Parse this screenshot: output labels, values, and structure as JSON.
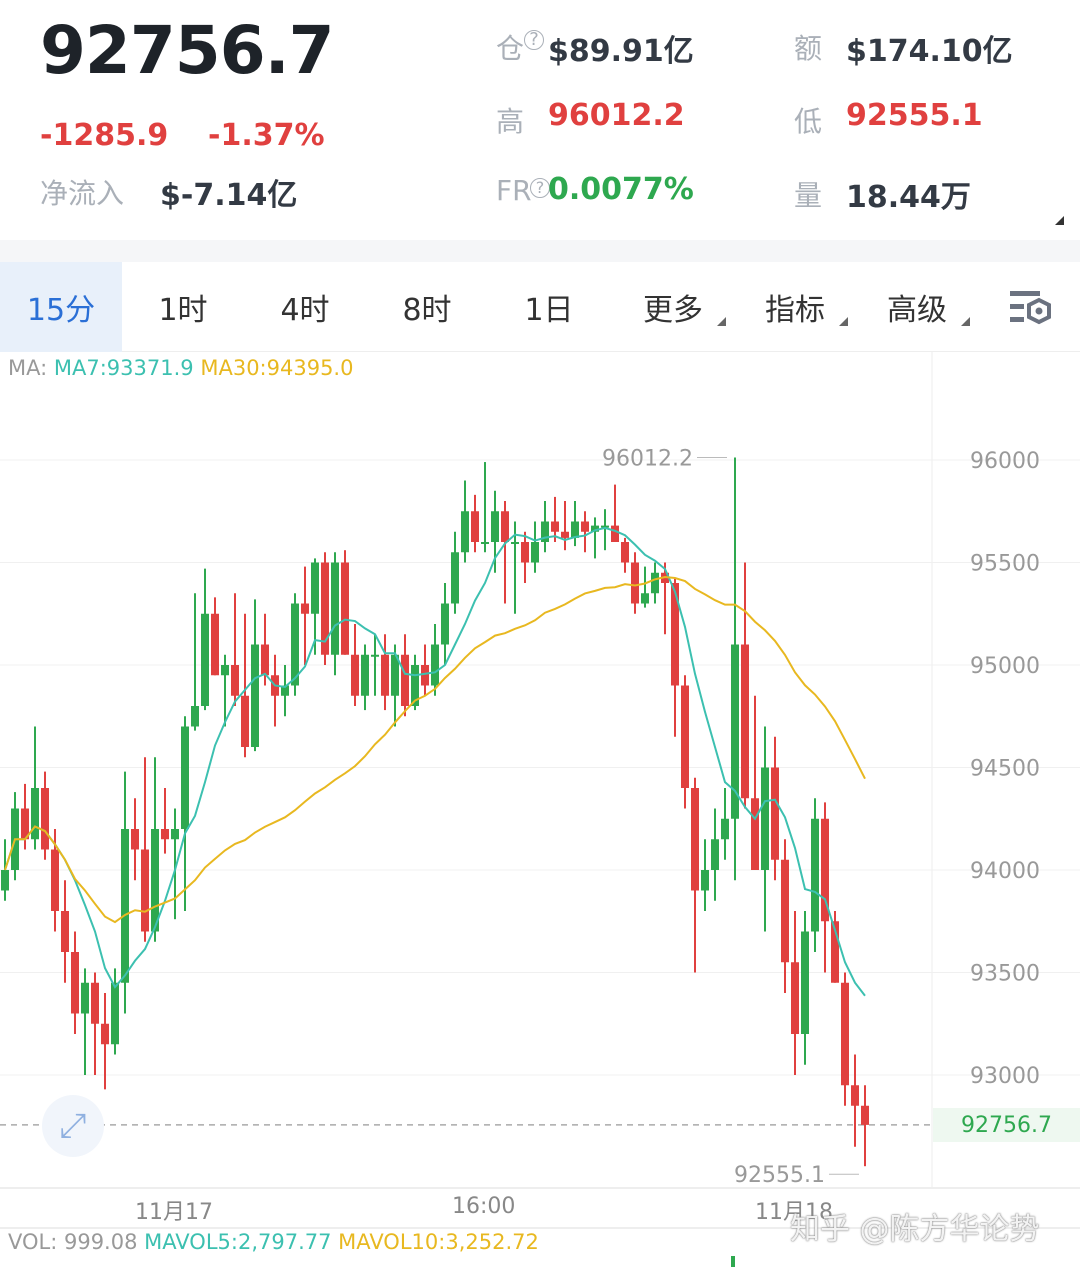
{
  "header": {
    "last_price": "92756.7",
    "change": "-1285.9",
    "change_pct": "-1.37%",
    "net_inflow_label": "净流入",
    "net_inflow": "$-7.14亿",
    "oi_label": "仓",
    "oi": "$89.91亿",
    "turnover_label": "额",
    "turnover": "$174.10亿",
    "high_label": "高",
    "high": "96012.2",
    "low_label": "低",
    "low": "92555.1",
    "fr_label": "FR",
    "fr": "0.0077%",
    "volume_label": "量",
    "volume": "18.44万"
  },
  "tabs": [
    {
      "label": "15分",
      "active": true
    },
    {
      "label": "1时"
    },
    {
      "label": "4时"
    },
    {
      "label": "8时"
    },
    {
      "label": "1日"
    },
    {
      "label": "更多"
    },
    {
      "label": "指标"
    },
    {
      "label": "高级"
    }
  ],
  "indicators": {
    "ma_prefix": "MA:",
    "ma7": "MA7:93371.9",
    "ma30": "MA30:94395.0",
    "vol": "VOL: 999.08",
    "mavol5": "MAVOL5:2,797.77",
    "mavol10": "MAVOL10:3,252.72"
  },
  "colors": {
    "up": "#2ea84f",
    "down": "#e0403f",
    "ma7": "#3cc0b0",
    "ma30": "#e8b820",
    "accent": "#2a6fd6"
  },
  "watermark": "知乎 @陈方华论势",
  "chart_data": {
    "type": "candlestick",
    "interval": "15分",
    "y_ticks": [
      96000,
      95500,
      95000,
      94500,
      94000,
      93500,
      93000
    ],
    "ylim": [
      92500,
      96500
    ],
    "x_labels": [
      "11月17",
      "16:00",
      "11月18"
    ],
    "grid": true,
    "high_annotation": "96012.2",
    "low_annotation": "92555.1",
    "last_price_tag": "92756.7",
    "candles": [
      [
        93900,
        94150,
        93850,
        94000
      ],
      [
        94000,
        94380,
        93950,
        94300
      ],
      [
        94300,
        94420,
        94100,
        94150
      ],
      [
        94150,
        94700,
        94100,
        94400
      ],
      [
        94400,
        94480,
        94050,
        94100
      ],
      [
        94100,
        94200,
        93700,
        93800
      ],
      [
        93800,
        93950,
        93450,
        93600
      ],
      [
        93600,
        93700,
        93200,
        93300
      ],
      [
        93300,
        93520,
        93000,
        93450
      ],
      [
        93450,
        93500,
        93000,
        93250
      ],
      [
        93250,
        93400,
        92930,
        93150
      ],
      [
        93150,
        93520,
        93100,
        93450
      ],
      [
        93450,
        94480,
        93300,
        94200
      ],
      [
        94200,
        94350,
        93950,
        94100
      ],
      [
        94100,
        94550,
        93650,
        93700
      ],
      [
        93700,
        94550,
        93650,
        94200
      ],
      [
        94200,
        94400,
        94080,
        94150
      ],
      [
        94150,
        94300,
        93760,
        94200
      ],
      [
        94200,
        94750,
        93800,
        94700
      ],
      [
        94700,
        95350,
        94680,
        94800
      ],
      [
        94800,
        95470,
        94780,
        95250
      ],
      [
        95250,
        95330,
        94950,
        94950
      ],
      [
        94950,
        95050,
        94700,
        95000
      ],
      [
        95000,
        95350,
        94800,
        94850
      ],
      [
        94850,
        95250,
        94550,
        94600
      ],
      [
        94600,
        95320,
        94580,
        95100
      ],
      [
        95100,
        95250,
        94900,
        94950
      ],
      [
        94950,
        95050,
        94700,
        94850
      ],
      [
        94850,
        95000,
        94750,
        94900
      ],
      [
        94900,
        95350,
        94850,
        95300
      ],
      [
        95300,
        95480,
        95000,
        95250
      ],
      [
        95250,
        95520,
        95050,
        95500
      ],
      [
        95500,
        95550,
        95000,
        95050
      ],
      [
        95050,
        95550,
        94950,
        95500
      ],
      [
        95500,
        95560,
        95050,
        95050
      ],
      [
        95050,
        95200,
        94800,
        94850
      ],
      [
        94850,
        95100,
        94780,
        95050
      ],
      [
        95050,
        95150,
        94850,
        95050
      ],
      [
        95050,
        95150,
        94780,
        94850
      ],
      [
        94850,
        95100,
        94700,
        95050
      ],
      [
        95050,
        95150,
        94750,
        94800
      ],
      [
        94800,
        95050,
        94780,
        95000
      ],
      [
        95000,
        95100,
        94850,
        94900
      ],
      [
        94900,
        95200,
        94850,
        95100
      ],
      [
        95100,
        95400,
        95000,
        95300
      ],
      [
        95300,
        95650,
        95250,
        95550
      ],
      [
        95550,
        95900,
        95500,
        95750
      ],
      [
        95750,
        95830,
        95550,
        95600
      ],
      [
        95600,
        95990,
        95550,
        95600
      ],
      [
        95600,
        95850,
        95450,
        95750
      ],
      [
        95750,
        95800,
        95300,
        95600
      ],
      [
        95600,
        95700,
        95250,
        95600
      ],
      [
        95600,
        95650,
        95400,
        95500
      ],
      [
        95500,
        95700,
        95450,
        95600
      ],
      [
        95600,
        95800,
        95550,
        95700
      ],
      [
        95700,
        95820,
        95600,
        95650
      ],
      [
        95650,
        95800,
        95560,
        95620
      ],
      [
        95620,
        95800,
        95580,
        95700
      ],
      [
        95700,
        95750,
        95550,
        95650
      ],
      [
        95650,
        95720,
        95520,
        95680
      ],
      [
        95680,
        95760,
        95560,
        95680
      ],
      [
        95680,
        95880,
        95600,
        95600
      ],
      [
        95600,
        95620,
        95450,
        95500
      ],
      [
        95500,
        95550,
        95250,
        95300
      ],
      [
        95300,
        95480,
        95280,
        95350
      ],
      [
        95350,
        95500,
        95300,
        95450
      ],
      [
        95450,
        95500,
        95150,
        95400
      ],
      [
        95400,
        95420,
        94650,
        94900
      ],
      [
        94900,
        94950,
        94300,
        94400
      ],
      [
        94400,
        94450,
        93500,
        93900
      ],
      [
        93900,
        94150,
        93800,
        94000
      ],
      [
        94000,
        94300,
        93850,
        94150
      ],
      [
        94150,
        94400,
        94050,
        94250
      ],
      [
        94250,
        96012.2,
        93950,
        95100
      ],
      [
        95100,
        95500,
        94300,
        94350
      ],
      [
        94350,
        94850,
        94000,
        94000
      ],
      [
        94000,
        94700,
        93700,
        94500
      ],
      [
        94500,
        94650,
        93950,
        94050
      ],
      [
        94050,
        94150,
        93400,
        93550
      ],
      [
        93550,
        93800,
        93000,
        93200
      ],
      [
        93200,
        93800,
        93050,
        93700
      ],
      [
        93700,
        94350,
        93600,
        94250
      ],
      [
        94250,
        94330,
        93500,
        93750
      ],
      [
        93750,
        93800,
        93450,
        93450
      ],
      [
        93450,
        93500,
        92850,
        92950
      ],
      [
        92950,
        93100,
        92650,
        92850
      ],
      [
        92850,
        92950,
        92555.1,
        92756.7
      ]
    ]
  }
}
